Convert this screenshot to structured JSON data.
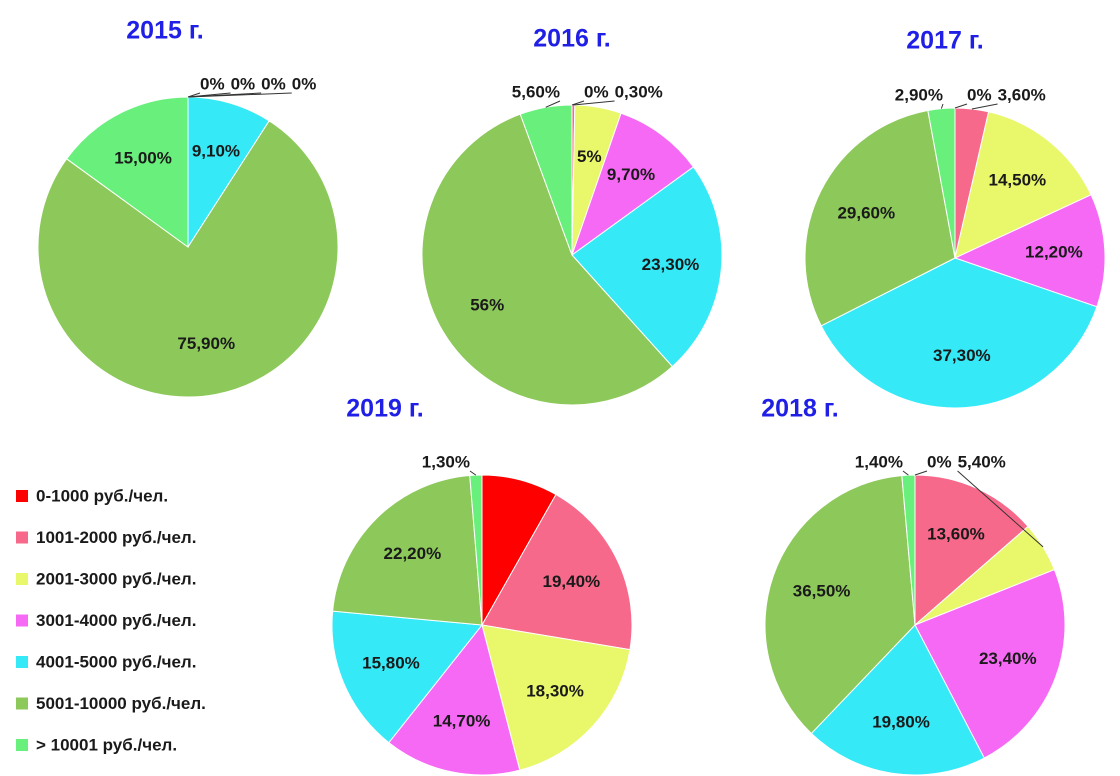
{
  "legend": {
    "labels": [
      "0-1000 руб./чел.",
      "1001-2000 руб./чел.",
      "2001-3000 руб./чел.",
      "3001-4000 руб./чел.",
      "4001-5000 руб./чел.",
      "5001-10000 руб./чел.",
      "> 10001 руб./чел."
    ],
    "colors": [
      "#ff0000",
      "#f7698a",
      "#e9f76a",
      "#f669f4",
      "#36e9f7",
      "#8dc85a",
      "#69ef7c"
    ]
  },
  "chart_data": [
    {
      "type": "pie",
      "title": "2015 г.",
      "values": [
        0,
        0,
        0,
        0,
        9.1,
        75.9,
        15
      ],
      "value_labels": [
        "0%",
        "0%",
        "0%",
        "0%",
        "9,10%",
        "75,90%",
        "15,00%"
      ]
    },
    {
      "type": "pie",
      "title": "2016 г.",
      "values": [
        0,
        0.3,
        5,
        9.7,
        23.3,
        56,
        5.6
      ],
      "value_labels": [
        "0%",
        "0,30%",
        "5%",
        "9,70%",
        "23,30%",
        "56%",
        "5,60%"
      ]
    },
    {
      "type": "pie",
      "title": "2017 г.",
      "values": [
        0,
        3.6,
        14.5,
        12.2,
        37.3,
        29.6,
        2.9
      ],
      "value_labels": [
        "0%",
        "3,60%",
        "14,50%",
        "12,20%",
        "37,30%",
        "29,60%",
        "2,90%"
      ]
    },
    {
      "type": "pie",
      "title": "2019 г.",
      "values": [
        8.2,
        19.4,
        18.3,
        14.7,
        15.8,
        22.2,
        1.3
      ],
      "value_labels": [
        "8,20%",
        "19,40%",
        "18,30%",
        "14,70%",
        "15,80%",
        "22,20%",
        "1,30%"
      ],
      "value_label_colors": [
        "#ff0000",
        "#1a1a1a",
        "#1a1a1a",
        "#1a1a1a",
        "#1a1a1a",
        "#1a1a1a",
        "#1a1a1a"
      ]
    },
    {
      "type": "pie",
      "title": "2018 г.",
      "values": [
        0,
        13.6,
        5.4,
        23.4,
        19.8,
        36.5,
        1.4
      ],
      "value_labels": [
        "0%",
        "13,60%",
        "5,40%",
        "23,40%",
        "19,80%",
        "36,50%",
        "1,40%"
      ]
    }
  ]
}
